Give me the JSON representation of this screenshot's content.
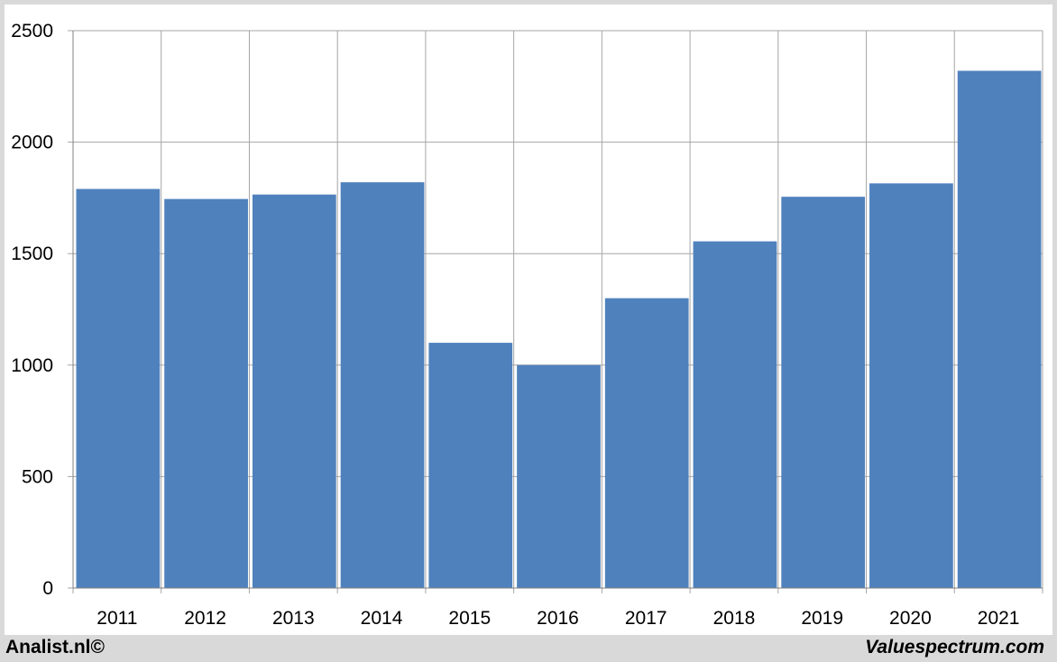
{
  "footer": {
    "left_text": "Analist.nl©",
    "right_text": "Valuespectrum.com"
  },
  "colors": {
    "bar": "#4f81bd",
    "grid": "#a6a6a6",
    "frame": "#d9d9d9"
  },
  "chart_data": {
    "type": "bar",
    "categories": [
      "2011",
      "2012",
      "2013",
      "2014",
      "2015",
      "2016",
      "2017",
      "2018",
      "2019",
      "2020",
      "2021"
    ],
    "values": [
      1790,
      1745,
      1765,
      1820,
      1100,
      1000,
      1300,
      1555,
      1755,
      1815,
      2320
    ],
    "title": "",
    "xlabel": "",
    "ylabel": "",
    "ylim": [
      0,
      2500
    ],
    "yticks": [
      "0",
      "500",
      "1000",
      "1500",
      "2000",
      "2500"
    ],
    "grid": true,
    "legend": "none"
  }
}
